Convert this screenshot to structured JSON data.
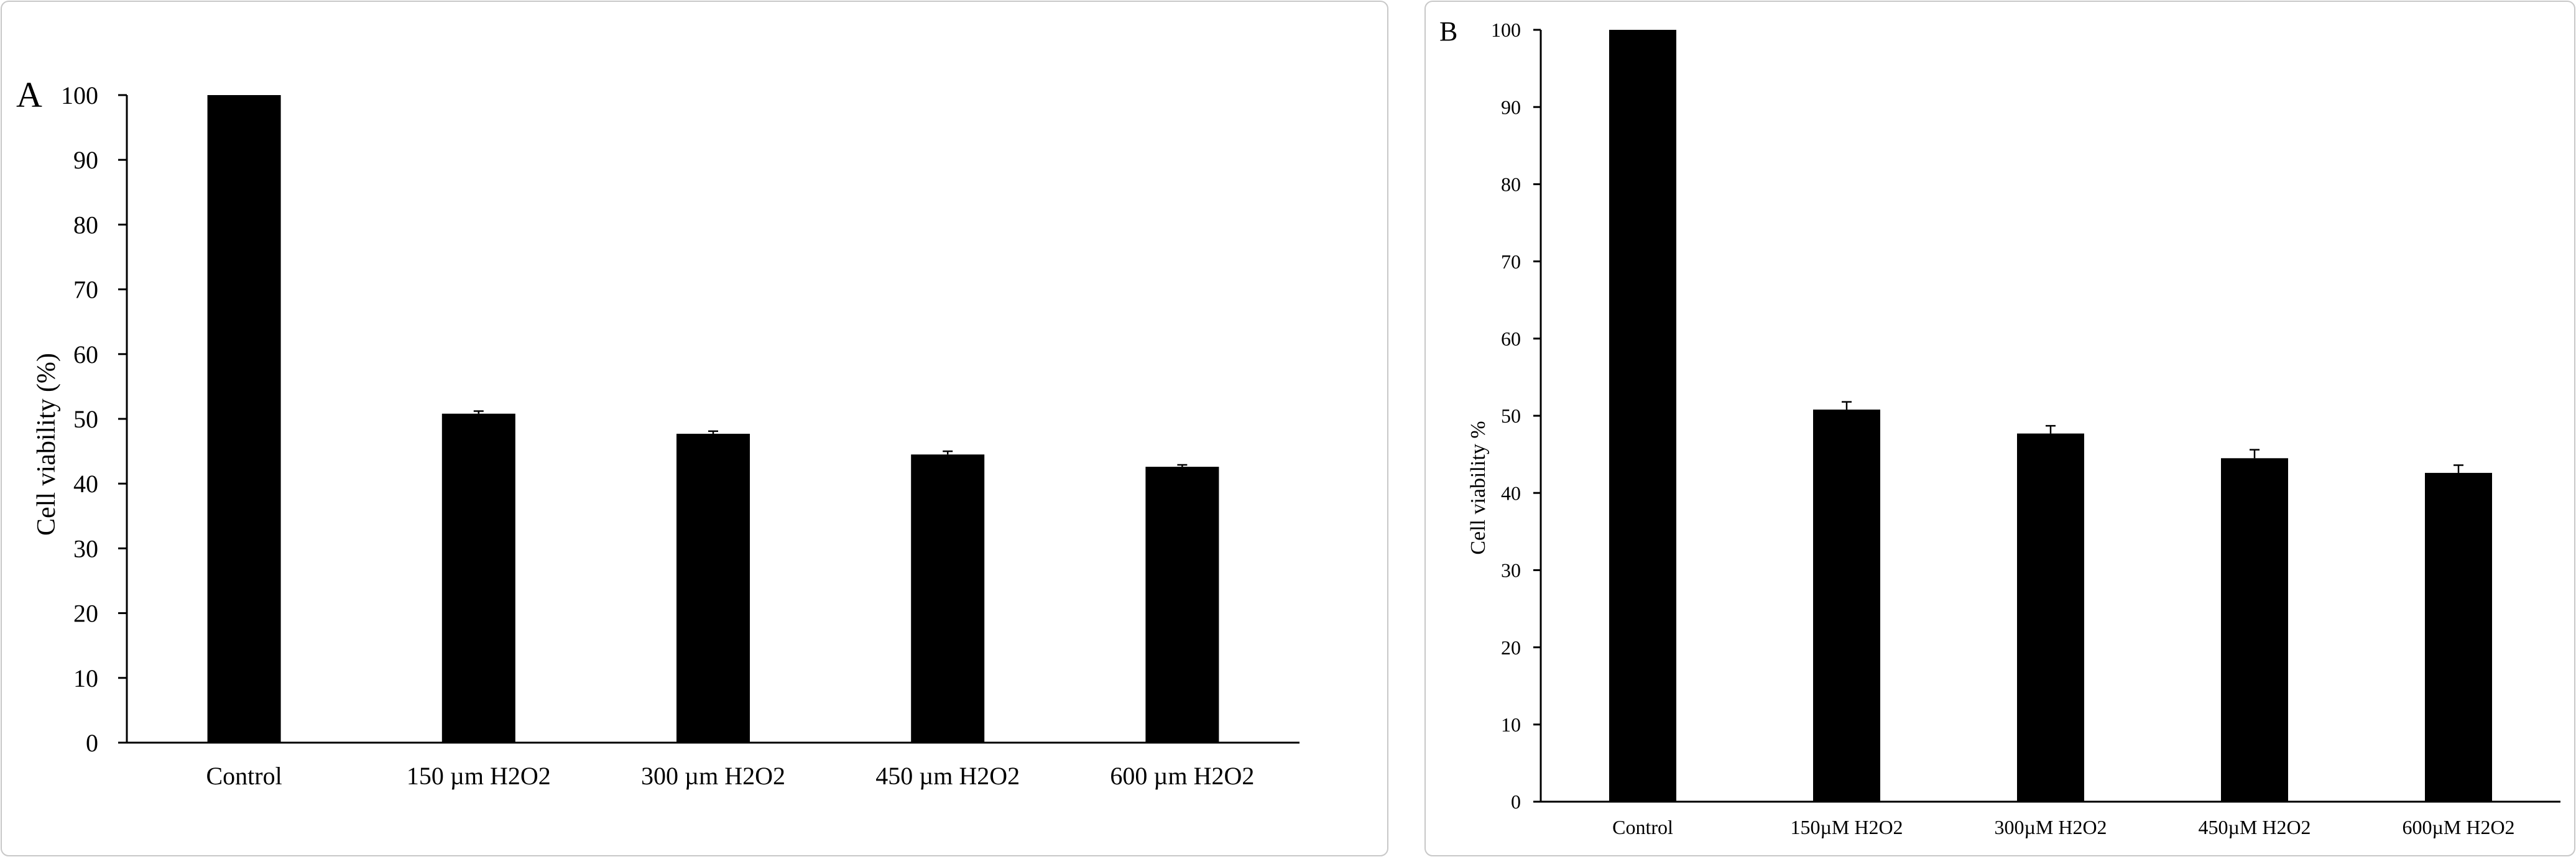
{
  "chart_data": [
    {
      "panel": "A",
      "type": "bar",
      "categories": [
        "Control",
        "150 µm H2O2",
        "300 µm H2O2",
        "450 µm H2O2",
        "600 µm H2O2"
      ],
      "values": [
        100,
        50.8,
        47.7,
        44.5,
        42.6
      ],
      "errors": [
        0,
        0.4,
        0.4,
        0.5,
        0.3
      ],
      "title": "",
      "xlabel": "",
      "ylabel": "Cell viability (%)",
      "ylim": [
        0,
        100
      ],
      "yticks": [
        0,
        10,
        20,
        30,
        40,
        50,
        60,
        70,
        80,
        90,
        100
      ],
      "bar_color": "#000000",
      "grid": false
    },
    {
      "panel": "B",
      "type": "bar",
      "categories": [
        "Control",
        "150µM H2O2",
        "300µM H2O2",
        "450µM H2O2",
        "600µM H2O2"
      ],
      "values": [
        100,
        50.8,
        47.7,
        44.5,
        42.6
      ],
      "errors": [
        0,
        1.0,
        1.0,
        1.1,
        1.0
      ],
      "title": "",
      "xlabel": "",
      "ylabel": "Cell viability %",
      "ylim": [
        0,
        100
      ],
      "yticks": [
        0,
        10,
        20,
        30,
        40,
        50,
        60,
        70,
        80,
        90,
        100
      ],
      "bar_color": "#000000",
      "grid": false
    }
  ]
}
